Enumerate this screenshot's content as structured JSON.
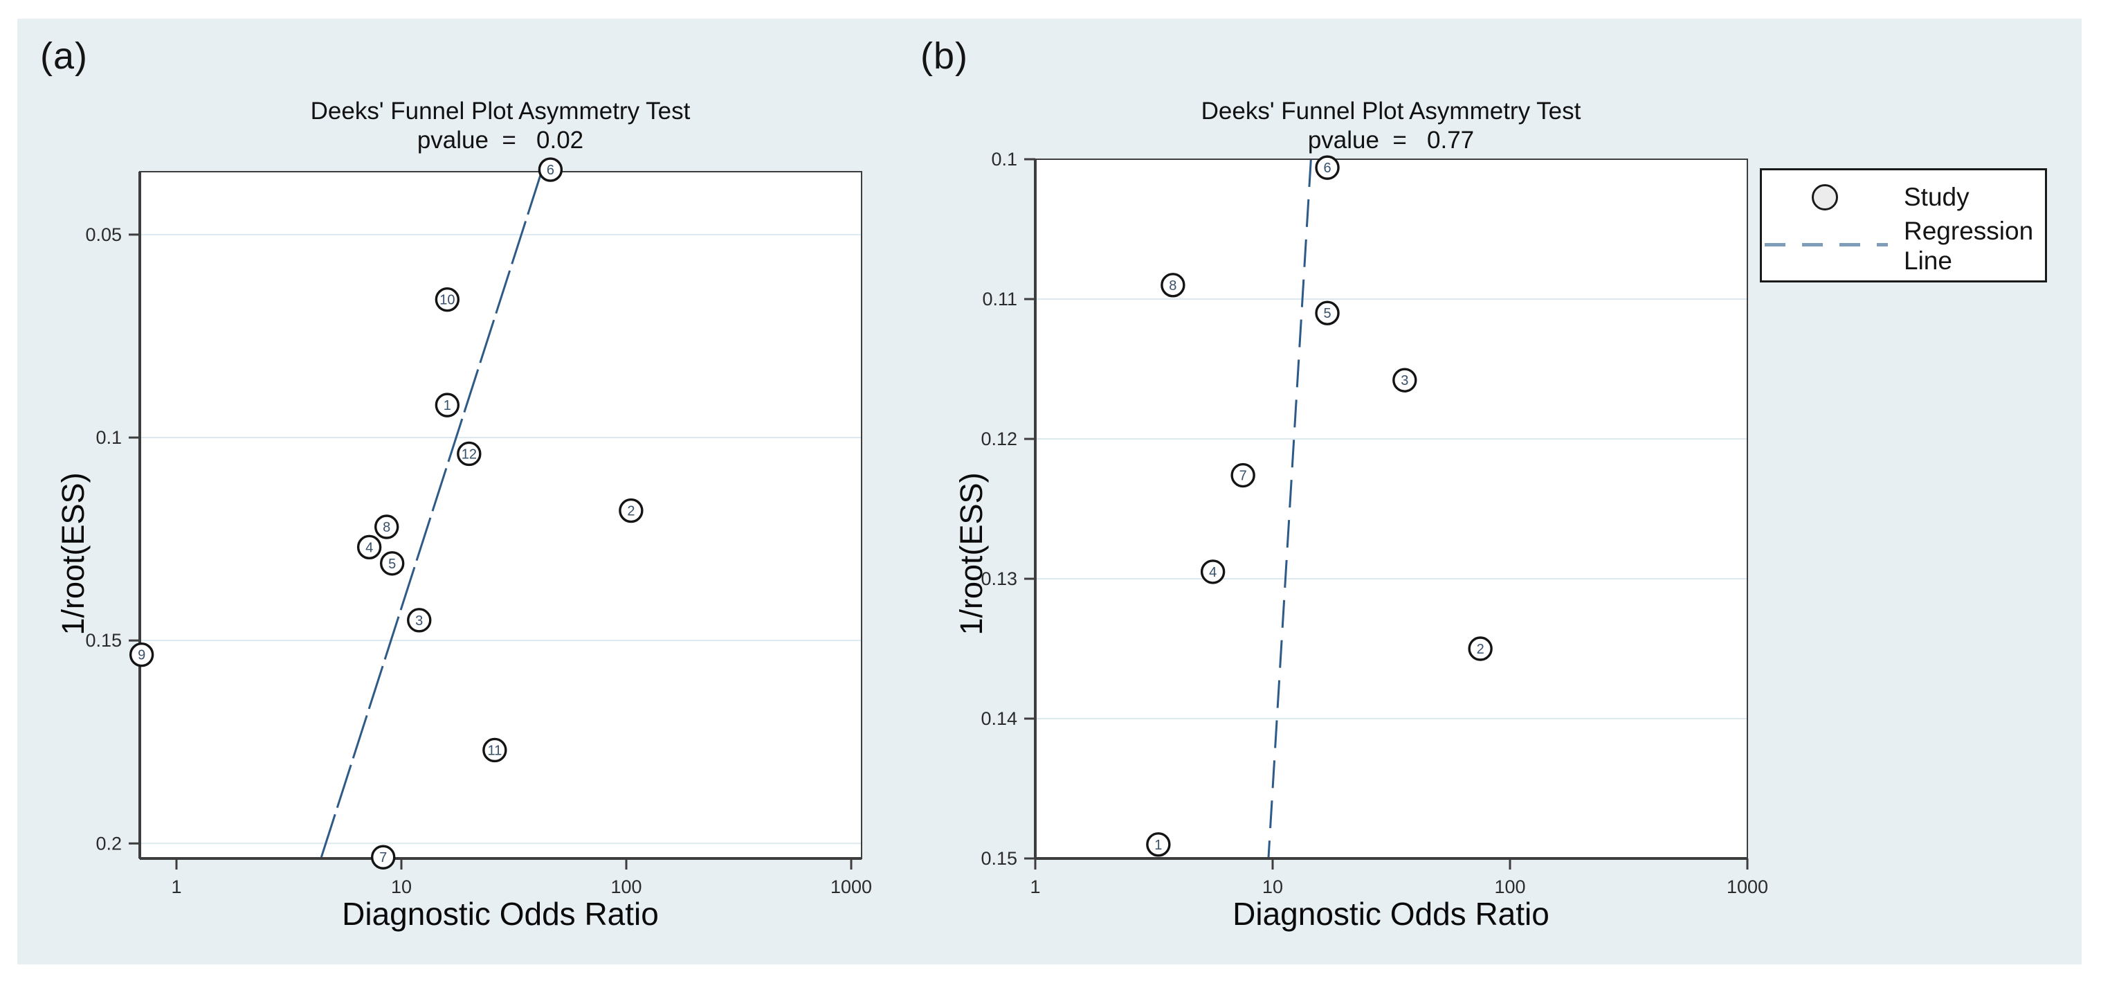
{
  "figure": {
    "panel_a_label": "(a)",
    "panel_b_label": "(b)",
    "background_color": "#e7eff3"
  },
  "colors": {
    "plot_bg": "#ffffff",
    "grid": "#dde9f0",
    "axis": "#3d3d3d",
    "regression_line": "#2e5a87",
    "legend_dash": "#7f9cb8",
    "marker_stroke": "#141414",
    "marker_fill": "#ffffff",
    "marker_label": "#37506b",
    "tick_text": "#2b2b2b"
  },
  "legend": {
    "study_label": "Study",
    "regression_label": "Regression Line"
  },
  "chart_data": [
    {
      "type": "scatter",
      "panel": "a",
      "title": "Deeks' Funnel Plot Asymmetry Test",
      "subtitle": "pvalue  =   0.02",
      "pvalue": 0.02,
      "xlabel": "Diagnostic Odds Ratio",
      "ylabel": "1/root(ESS)",
      "x_scale": "log",
      "y_axis_inverted_downward": true,
      "xlim": [
        0.687,
        1112
      ],
      "ylim": [
        0.0345,
        0.2037
      ],
      "x_ticks": [
        1,
        10,
        100,
        1000
      ],
      "x_tick_labels": [
        "1",
        "10",
        "100",
        "1000"
      ],
      "y_ticks": [
        0.05,
        0.1,
        0.15,
        0.2
      ],
      "y_tick_labels": [
        "0.05",
        "0.1",
        "0.15",
        "0.2"
      ],
      "grid": "horizontal-only",
      "points": [
        {
          "study": 6,
          "dor": 46,
          "inv_root_ess": 0.034
        },
        {
          "study": 10,
          "dor": 16,
          "inv_root_ess": 0.066
        },
        {
          "study": 1,
          "dor": 16,
          "inv_root_ess": 0.092
        },
        {
          "study": 12,
          "dor": 20,
          "inv_root_ess": 0.104
        },
        {
          "study": 2,
          "dor": 105,
          "inv_root_ess": 0.118
        },
        {
          "study": 8,
          "dor": 8.6,
          "inv_root_ess": 0.122
        },
        {
          "study": 4,
          "dor": 7.2,
          "inv_root_ess": 0.127
        },
        {
          "study": 5,
          "dor": 9.1,
          "inv_root_ess": 0.131
        },
        {
          "study": 3,
          "dor": 12,
          "inv_root_ess": 0.145
        },
        {
          "study": 9,
          "dor": 0.7,
          "inv_root_ess": 0.1535
        },
        {
          "study": 11,
          "dor": 26,
          "inv_root_ess": 0.177
        },
        {
          "study": 7,
          "dor": 8.3,
          "inv_root_ess": 0.2034
        }
      ],
      "regression_line": {
        "x1": 42,
        "y1": 0.0345,
        "x2": 4.4,
        "y2": 0.2035
      },
      "line_dash": "65 10"
    },
    {
      "type": "scatter",
      "panel": "b",
      "title": "Deeks' Funnel Plot Asymmetry Test",
      "subtitle": "pvalue  =   0.77",
      "pvalue": 0.77,
      "xlabel": "Diagnostic Odds Ratio",
      "ylabel": "1/root(ESS)",
      "x_scale": "log",
      "y_axis_inverted_downward": true,
      "xlim": [
        1,
        1000
      ],
      "ylim": [
        0.1,
        0.15
      ],
      "x_ticks": [
        1,
        10,
        100,
        1000
      ],
      "x_tick_labels": [
        "1",
        "10",
        "100",
        "1000"
      ],
      "y_ticks": [
        0.1,
        0.11,
        0.12,
        0.13,
        0.14,
        0.15
      ],
      "y_tick_labels": [
        "0.1",
        "0.11",
        "0.12",
        "0.13",
        "0.14",
        "0.15"
      ],
      "grid": "horizontal-only",
      "points": [
        {
          "study": 6,
          "dor": 17,
          "inv_root_ess": 0.1006
        },
        {
          "study": 8,
          "dor": 3.8,
          "inv_root_ess": 0.109
        },
        {
          "study": 5,
          "dor": 17,
          "inv_root_ess": 0.111
        },
        {
          "study": 3,
          "dor": 36,
          "inv_root_ess": 0.1158
        },
        {
          "study": 7,
          "dor": 7.5,
          "inv_root_ess": 0.1226
        },
        {
          "study": 4,
          "dor": 5.6,
          "inv_root_ess": 0.1295
        },
        {
          "study": 2,
          "dor": 75,
          "inv_root_ess": 0.135
        },
        {
          "study": 1,
          "dor": 3.3,
          "inv_root_ess": 0.149
        }
      ],
      "regression_line": {
        "x1": 14.5,
        "y1": 0.1,
        "x2": 9.6,
        "y2": 0.15
      },
      "line_dash": "40 18"
    }
  ]
}
